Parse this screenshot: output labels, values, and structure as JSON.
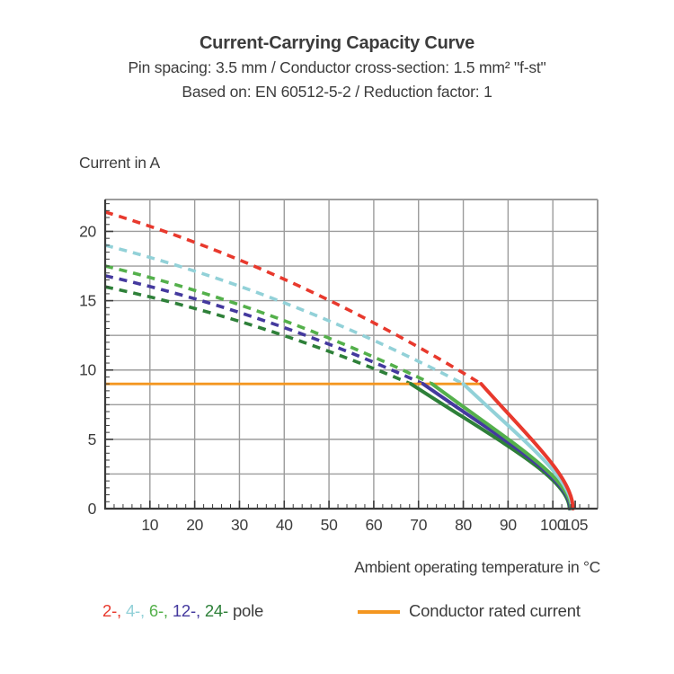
{
  "header": {
    "title": "Current-Carrying Capacity Curve",
    "subtitle1": "Pin spacing: 3.5 mm / Conductor cross-section: 1.5 mm² \"f-st\"",
    "subtitle2": "Based on: EN 60512-5-2 / Reduction factor: 1"
  },
  "chart_data": {
    "type": "line",
    "title": "Current-Carrying Capacity Curve",
    "ylabel": "Current in A",
    "xlabel": "Ambient operating temperature in °C",
    "xlim": [
      0,
      110
    ],
    "ylim": [
      0,
      22.3
    ],
    "x_major_ticks": [
      10,
      20,
      30,
      40,
      50,
      60,
      70,
      80,
      90,
      100,
      105
    ],
    "x_gridlines": [
      10,
      20,
      30,
      40,
      50,
      60,
      70,
      80,
      90,
      100
    ],
    "x_minor_tick_step": 2,
    "y_major_ticks": [
      0,
      5,
      10,
      15,
      20
    ],
    "y_gridline_step": 2.5,
    "y_minor_tick_step": 0.5,
    "grid_on": true,
    "grid_color": "#9C9C9C",
    "axis_color": "#3A3A3A",
    "rated_current": {
      "label": "Conductor rated current",
      "value_a": 9,
      "x_start": 0,
      "x_end": 84,
      "color": "#F49620"
    },
    "series": [
      {
        "name": "2-pole",
        "poles": 2,
        "color": "#E8392D",
        "derating_dashed": {
          "start": [
            0,
            21.4
          ],
          "end": [
            84,
            9
          ]
        },
        "capacity_solid": {
          "start": [
            84,
            9
          ],
          "end": [
            104.5,
            0
          ]
        },
        "samples": [
          [
            0,
            21.4
          ],
          [
            20,
            19.3
          ],
          [
            40,
            16.8
          ],
          [
            60,
            12.9
          ],
          [
            70,
            11.0
          ],
          [
            84,
            9
          ],
          [
            95,
            6.0
          ],
          [
            100,
            3.6
          ],
          [
            104.5,
            0
          ]
        ]
      },
      {
        "name": "4-pole",
        "poles": 4,
        "color": "#92D1D8",
        "derating_dashed": {
          "start": [
            0,
            19.0
          ],
          "end": [
            80,
            9
          ]
        },
        "capacity_solid": {
          "start": [
            80,
            9
          ],
          "end": [
            104.3,
            0
          ]
        },
        "samples": [
          [
            0,
            19.0
          ],
          [
            20,
            17.2
          ],
          [
            40,
            15.2
          ],
          [
            60,
            11.7
          ],
          [
            80,
            9
          ],
          [
            95,
            5.6
          ],
          [
            100,
            3.3
          ],
          [
            104.3,
            0
          ]
        ]
      },
      {
        "name": "6-pole",
        "poles": 6,
        "color": "#54B04B",
        "derating_dashed": {
          "start": [
            0,
            17.5
          ],
          "end": [
            73,
            9
          ]
        },
        "capacity_solid": {
          "start": [
            73,
            9
          ],
          "end": [
            104.1,
            0
          ]
        },
        "samples": [
          [
            0,
            17.5
          ],
          [
            20,
            15.7
          ],
          [
            40,
            13.5
          ],
          [
            60,
            10.6
          ],
          [
            73,
            9
          ],
          [
            95,
            4.8
          ],
          [
            100,
            3.0
          ],
          [
            104.1,
            0
          ]
        ]
      },
      {
        "name": "12-pole",
        "poles": 12,
        "color": "#44399E",
        "derating_dashed": {
          "start": [
            0,
            16.8
          ],
          "end": [
            71,
            9
          ]
        },
        "capacity_solid": {
          "start": [
            71,
            9
          ],
          "end": [
            103.9,
            0
          ]
        },
        "samples": [
          [
            0,
            16.8
          ],
          [
            20,
            15.1
          ],
          [
            40,
            13.0
          ],
          [
            60,
            10.3
          ],
          [
            71,
            9
          ],
          [
            95,
            4.5
          ],
          [
            100,
            2.7
          ],
          [
            103.9,
            0
          ]
        ]
      },
      {
        "name": "24-pole",
        "poles": 24,
        "color": "#2E8039",
        "derating_dashed": {
          "start": [
            0,
            16.0
          ],
          "end": [
            68.3,
            9
          ]
        },
        "capacity_solid": {
          "start": [
            68.3,
            9
          ],
          "end": [
            103.7,
            0
          ]
        },
        "samples": [
          [
            0,
            16.0
          ],
          [
            20,
            14.4
          ],
          [
            40,
            12.4
          ],
          [
            60,
            9.9
          ],
          [
            68.3,
            9
          ],
          [
            90,
            5.1
          ],
          [
            100,
            2.3
          ],
          [
            103.7,
            0
          ]
        ]
      }
    ],
    "legend_position": "bottom"
  },
  "legend": {
    "pole_items": [
      {
        "text": "2-,",
        "color": "#E8392D"
      },
      {
        "text": "4-,",
        "color": "#92D1D8"
      },
      {
        "text": "6-,",
        "color": "#54B04B"
      },
      {
        "text": "12-,",
        "color": "#44399E"
      },
      {
        "text": "24-",
        "color": "#2E8039"
      }
    ],
    "pole_suffix": {
      "text": "pole",
      "color": "#3C3C3C"
    },
    "rated_label": "Conductor rated current"
  }
}
